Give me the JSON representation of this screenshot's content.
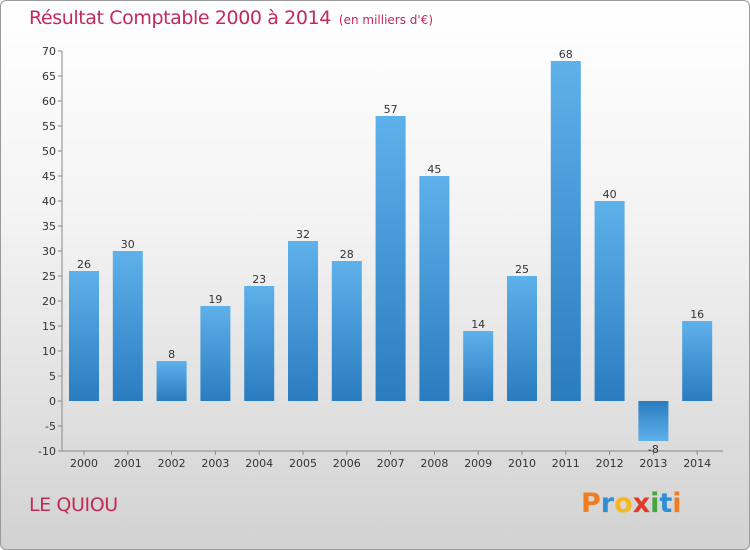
{
  "chart_data": {
    "type": "bar",
    "title": "Résultat Comptable 2000 à 2014",
    "subtitle": "(en milliers d'€)",
    "categories": [
      "2000",
      "2001",
      "2002",
      "2003",
      "2004",
      "2005",
      "2006",
      "2007",
      "2008",
      "2009",
      "2010",
      "2011",
      "2012",
      "2013",
      "2014"
    ],
    "values": [
      26,
      30,
      8,
      19,
      23,
      32,
      28,
      57,
      45,
      14,
      25,
      68,
      40,
      -8,
      16
    ],
    "value_labels": [
      "26",
      "30",
      "8",
      "19",
      "23",
      "32",
      "28",
      "57",
      "45",
      "14",
      "25",
      "68",
      "40",
      "-8",
      "16"
    ],
    "ylim": [
      -10,
      70
    ],
    "yticks": [
      -10,
      -5,
      0,
      5,
      10,
      15,
      20,
      25,
      30,
      35,
      40,
      45,
      50,
      55,
      60,
      65,
      70
    ],
    "grid": false,
    "colors": {
      "bar_light": "#5eb1ea",
      "bar_dark": "#2a7cc0",
      "title": "#c22a58"
    }
  },
  "footer": {
    "commune": "LE QUIOU"
  },
  "logo": {
    "letters": [
      "P",
      "r",
      "o",
      "x",
      "i",
      "t",
      "i"
    ]
  }
}
